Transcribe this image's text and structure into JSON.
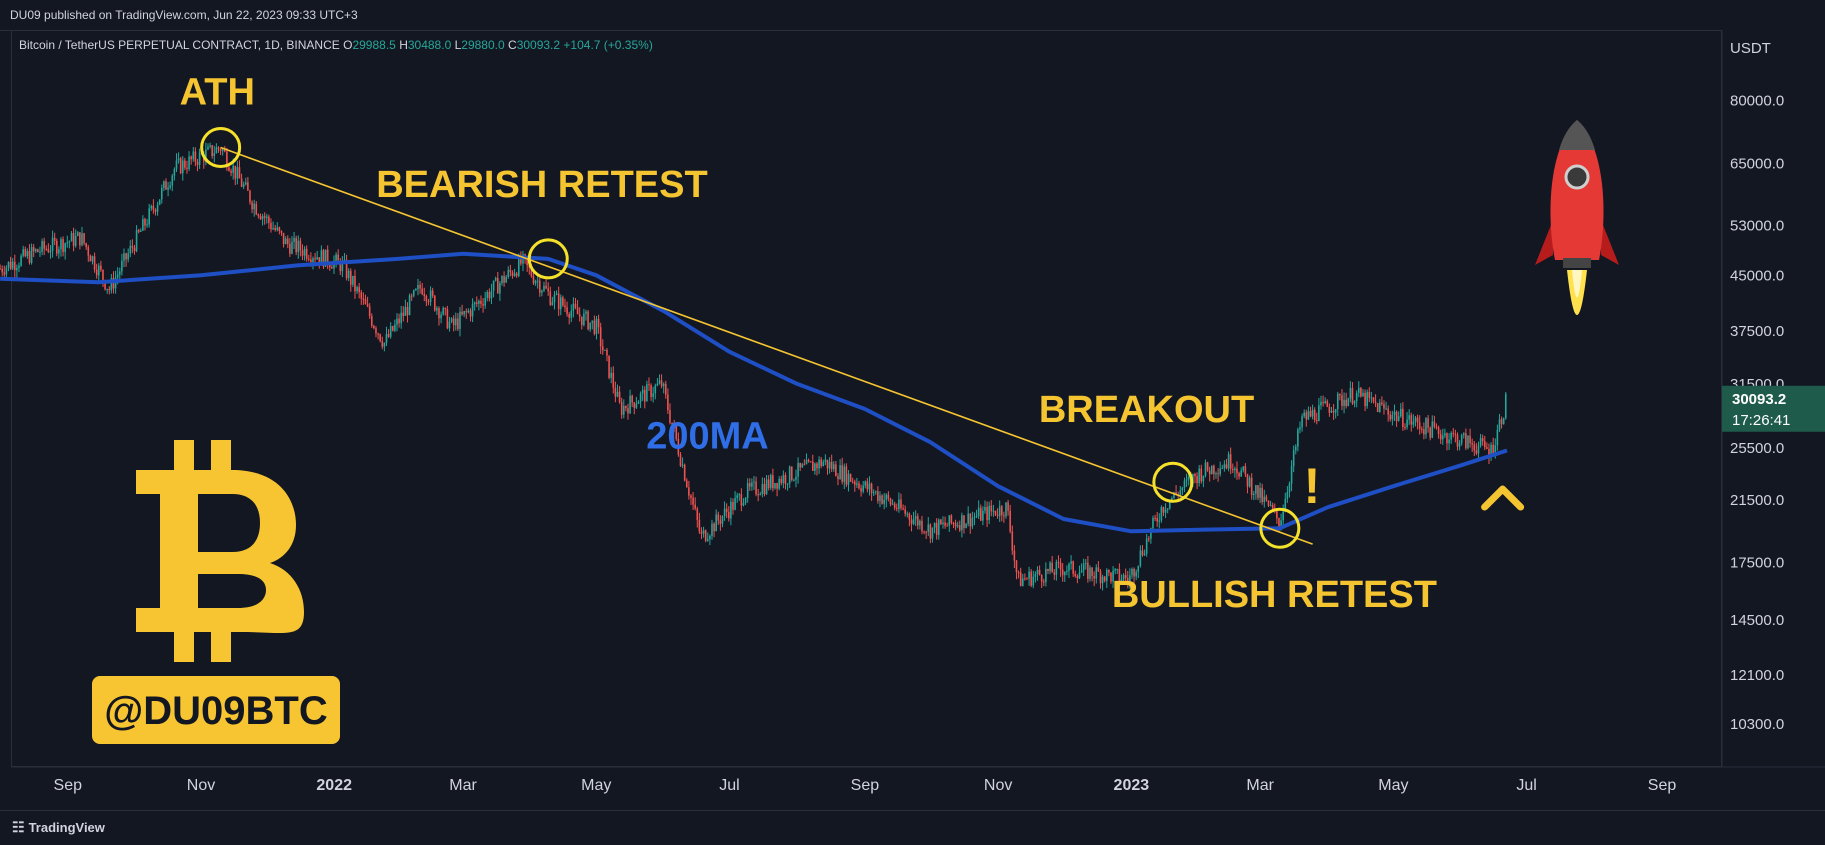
{
  "header": {
    "published": "DU09 published on TradingView.com, Jun 22, 2023 09:33 UTC+3"
  },
  "legend": {
    "symbol": "Bitcoin / TetherUS PERPETUAL CONTRACT, 1D, BINANCE",
    "o_label": "O",
    "o_value": "29988.5",
    "h_label": "H",
    "h_value": "30488.0",
    "l_label": "L",
    "l_value": "29880.0",
    "c_label": "C",
    "c_value": "30093.2",
    "change": "+104.7 (+0.35%)"
  },
  "footer": {
    "brand": "TradingView"
  },
  "colors": {
    "background": "#131722",
    "ma_line": "#1f4fc4",
    "trendline": "#f5c431",
    "annotation": "#f5c431",
    "candle_up": "#26a69a",
    "candle_down": "#ef5350",
    "price_badge": "#1e5b4b"
  },
  "chart_data": {
    "type": "line",
    "title": "",
    "ylabel": "USDT",
    "xlabel": "",
    "y_scale": "log",
    "ylim": [
      9000,
      95000
    ],
    "x_ticks": [
      "Sep",
      "Nov",
      "2022",
      "Mar",
      "May",
      "Jul",
      "Sep",
      "Nov",
      "2023",
      "Mar",
      "May",
      "Jul",
      "Sep"
    ],
    "y_ticks": [
      "80000.0",
      "65000.0",
      "53000.0",
      "45000.0",
      "37500.0",
      "31500.0",
      "25500.0",
      "21500.0",
      "17500.0",
      "14500.0",
      "12100.0",
      "10300.0"
    ],
    "y_tick_values": [
      80000,
      65000,
      53000,
      45000,
      37500,
      31500,
      25500,
      21500,
      17500,
      14500,
      12100,
      10300
    ],
    "x_range_months": [
      "2021-08",
      "2023-09"
    ],
    "series": [
      {
        "name": "BTCUSDT price",
        "x": [
          "2021-08-01",
          "2021-08-20",
          "2021-09-07",
          "2021-09-20",
          "2021-10-10",
          "2021-10-20",
          "2021-11-10",
          "2021-11-25",
          "2021-12-10",
          "2022-01-05",
          "2022-01-24",
          "2022-02-10",
          "2022-02-24",
          "2022-03-28",
          "2022-04-10",
          "2022-05-01",
          "2022-05-12",
          "2022-05-31",
          "2022-06-18",
          "2022-07-08",
          "2022-08-13",
          "2022-09-10",
          "2022-10-01",
          "2022-11-05",
          "2022-11-10",
          "2022-12-01",
          "2022-12-31",
          "2023-01-15",
          "2023-02-01",
          "2023-02-16",
          "2023-03-10",
          "2023-03-20",
          "2023-04-13",
          "2023-05-01",
          "2023-05-20",
          "2023-06-15",
          "2023-06-22"
        ],
        "y": [
          46000,
          49000,
          51000,
          43000,
          56000,
          64000,
          68500,
          57000,
          50000,
          46500,
          36000,
          43500,
          38000,
          47000,
          42000,
          38000,
          29000,
          31500,
          19000,
          22000,
          24400,
          21600,
          19500,
          21000,
          16500,
          17200,
          16600,
          21000,
          23500,
          24500,
          20000,
          28000,
          30500,
          28500,
          27000,
          25300,
          30093
        ]
      },
      {
        "name": "200MA",
        "x": [
          "2021-08-01",
          "2021-09-15",
          "2021-11-01",
          "2021-12-15",
          "2022-01-30",
          "2022-03-01",
          "2022-04-09",
          "2022-05-01",
          "2022-06-01",
          "2022-07-01",
          "2022-08-01",
          "2022-09-01",
          "2022-10-01",
          "2022-11-01",
          "2022-12-01",
          "2023-01-01",
          "2023-02-01",
          "2023-03-10",
          "2023-04-01",
          "2023-05-01",
          "2023-06-01",
          "2023-06-22"
        ],
        "y": [
          44500,
          44000,
          45000,
          46500,
          47500,
          48300,
          47500,
          45000,
          40000,
          35000,
          31500,
          29000,
          26000,
          22500,
          20200,
          19400,
          19500,
          19600,
          21000,
          22500,
          24100,
          25300
        ]
      },
      {
        "name": "trendline",
        "x": [
          "2021-11-10",
          "2023-03-25"
        ],
        "y": [
          68500,
          18600
        ]
      }
    ],
    "candles_up_color": "#26a69a",
    "candles_down_color": "#ef5350",
    "annotations": [
      {
        "text": "ATH",
        "x": "2021-11-10",
        "y": 68500
      },
      {
        "text": "BEARISH RETEST",
        "x": "2022-04-09",
        "y": 47500
      },
      {
        "text": "200MA",
        "x": "2022-08-01",
        "y": 30000
      },
      {
        "text": "BREAKOUT",
        "x": "2023-01-20",
        "y": 22800
      },
      {
        "text": "BULLISH RETEST",
        "x": "2023-03-10",
        "y": 19600
      },
      {
        "text": "!",
        "x": "2023-03-25",
        "y": 22500
      },
      {
        "text": "^",
        "x": "2023-06-20",
        "y": 22000
      }
    ],
    "last_price_label": "30093.2",
    "countdown_label": "17:26:41",
    "watermark": "@DU09BTC",
    "grid": false,
    "legend_position": "top-left"
  }
}
